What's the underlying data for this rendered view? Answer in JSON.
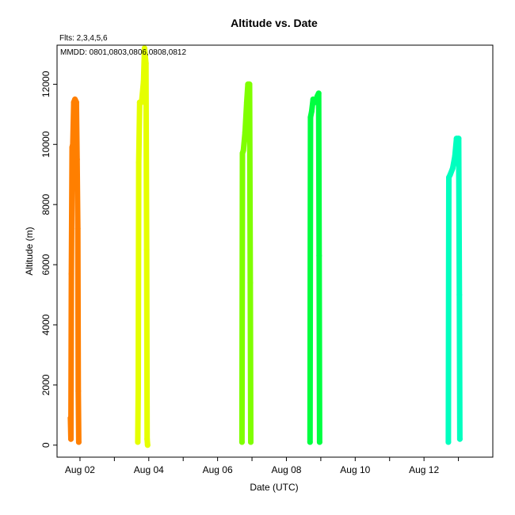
{
  "chart_data": {
    "type": "scatter",
    "title": "Altitude  vs. Date",
    "subtitle_flts": "Flts: 2,3,4,5,6",
    "annotation_mmdd": "MMDD: 0801,0803,0806,0808,0812",
    "xlabel": "Date (UTC)",
    "ylabel": "Altitude (m)",
    "x_ticks": [
      {
        "label": "Aug 02",
        "value": "2016-08-02"
      },
      {
        "label": "Aug 04",
        "value": "2016-08-04"
      },
      {
        "label": "Aug 06",
        "value": "2016-08-06"
      },
      {
        "label": "Aug 08",
        "value": "2016-08-08"
      },
      {
        "label": "Aug 10",
        "value": "2016-08-10"
      },
      {
        "label": "Aug 12",
        "value": "2016-08-12"
      }
    ],
    "y_ticks": [
      0,
      2000,
      4000,
      6000,
      8000,
      10000,
      12000
    ],
    "xlim": [
      "2016-08-01T08:00",
      "2016-08-14T00:00"
    ],
    "ylim": [
      -400,
      13300
    ],
    "grid": false,
    "series": [
      {
        "flight": 2,
        "date": "0801",
        "color": "#ff7f00",
        "points": [
          [
            "2016-08-01T17:20",
            900
          ],
          [
            "2016-08-01T17:40",
            200
          ],
          [
            "2016-08-01T18:00",
            5700
          ],
          [
            "2016-08-01T18:30",
            9900
          ],
          [
            "2016-08-01T19:00",
            10000
          ],
          [
            "2016-08-01T19:40",
            11400
          ],
          [
            "2016-08-01T20:30",
            11500
          ],
          [
            "2016-08-01T21:30",
            11400
          ],
          [
            "2016-08-01T22:00",
            9500
          ],
          [
            "2016-08-01T22:30",
            7200
          ],
          [
            "2016-08-01T22:50",
            1800
          ],
          [
            "2016-08-01T23:10",
            100
          ]
        ]
      },
      {
        "flight": 3,
        "date": "0803",
        "color": "#e5ff00",
        "points": [
          [
            "2016-08-03T16:20",
            100
          ],
          [
            "2016-08-03T16:40",
            1900
          ],
          [
            "2016-08-03T17:00",
            9400
          ],
          [
            "2016-08-03T17:40",
            11400
          ],
          [
            "2016-08-03T19:00",
            11400
          ],
          [
            "2016-08-03T20:20",
            12100
          ],
          [
            "2016-08-03T21:00",
            13200
          ],
          [
            "2016-08-03T22:00",
            12700
          ],
          [
            "2016-08-03T22:30",
            6500
          ],
          [
            "2016-08-03T22:50",
            200
          ],
          [
            "2016-08-03T23:10",
            0
          ]
        ]
      },
      {
        "flight": 4,
        "date": "0806",
        "color": "#7fff00",
        "points": [
          [
            "2016-08-06T17:00",
            100
          ],
          [
            "2016-08-06T17:20",
            9700
          ],
          [
            "2016-08-06T18:00",
            9800
          ],
          [
            "2016-08-06T19:10",
            10400
          ],
          [
            "2016-08-06T20:20",
            11400
          ],
          [
            "2016-08-06T21:10",
            12000
          ],
          [
            "2016-08-06T22:20",
            12000
          ],
          [
            "2016-08-06T22:50",
            5400
          ],
          [
            "2016-08-06T23:10",
            100
          ]
        ]
      },
      {
        "flight": 5,
        "date": "0808",
        "color": "#00ff40",
        "points": [
          [
            "2016-08-08T16:30",
            100
          ],
          [
            "2016-08-08T16:50",
            10900
          ],
          [
            "2016-08-08T17:40",
            11100
          ],
          [
            "2016-08-08T18:40",
            11500
          ],
          [
            "2016-08-08T20:20",
            11400
          ],
          [
            "2016-08-08T21:30",
            11600
          ],
          [
            "2016-08-08T22:30",
            11700
          ],
          [
            "2016-08-08T22:50",
            6300
          ],
          [
            "2016-08-08T23:10",
            100
          ]
        ]
      },
      {
        "flight": 6,
        "date": "0812",
        "color": "#00ffbf",
        "points": [
          [
            "2016-08-12T17:00",
            100
          ],
          [
            "2016-08-12T17:20",
            8900
          ],
          [
            "2016-08-12T18:20",
            9000
          ],
          [
            "2016-08-12T20:00",
            9200
          ],
          [
            "2016-08-12T21:30",
            9600
          ],
          [
            "2016-08-12T22:40",
            10200
          ],
          [
            "2016-08-13T00:10",
            10200
          ],
          [
            "2016-08-13T00:40",
            5000
          ],
          [
            "2016-08-13T01:00",
            200
          ]
        ]
      }
    ]
  }
}
